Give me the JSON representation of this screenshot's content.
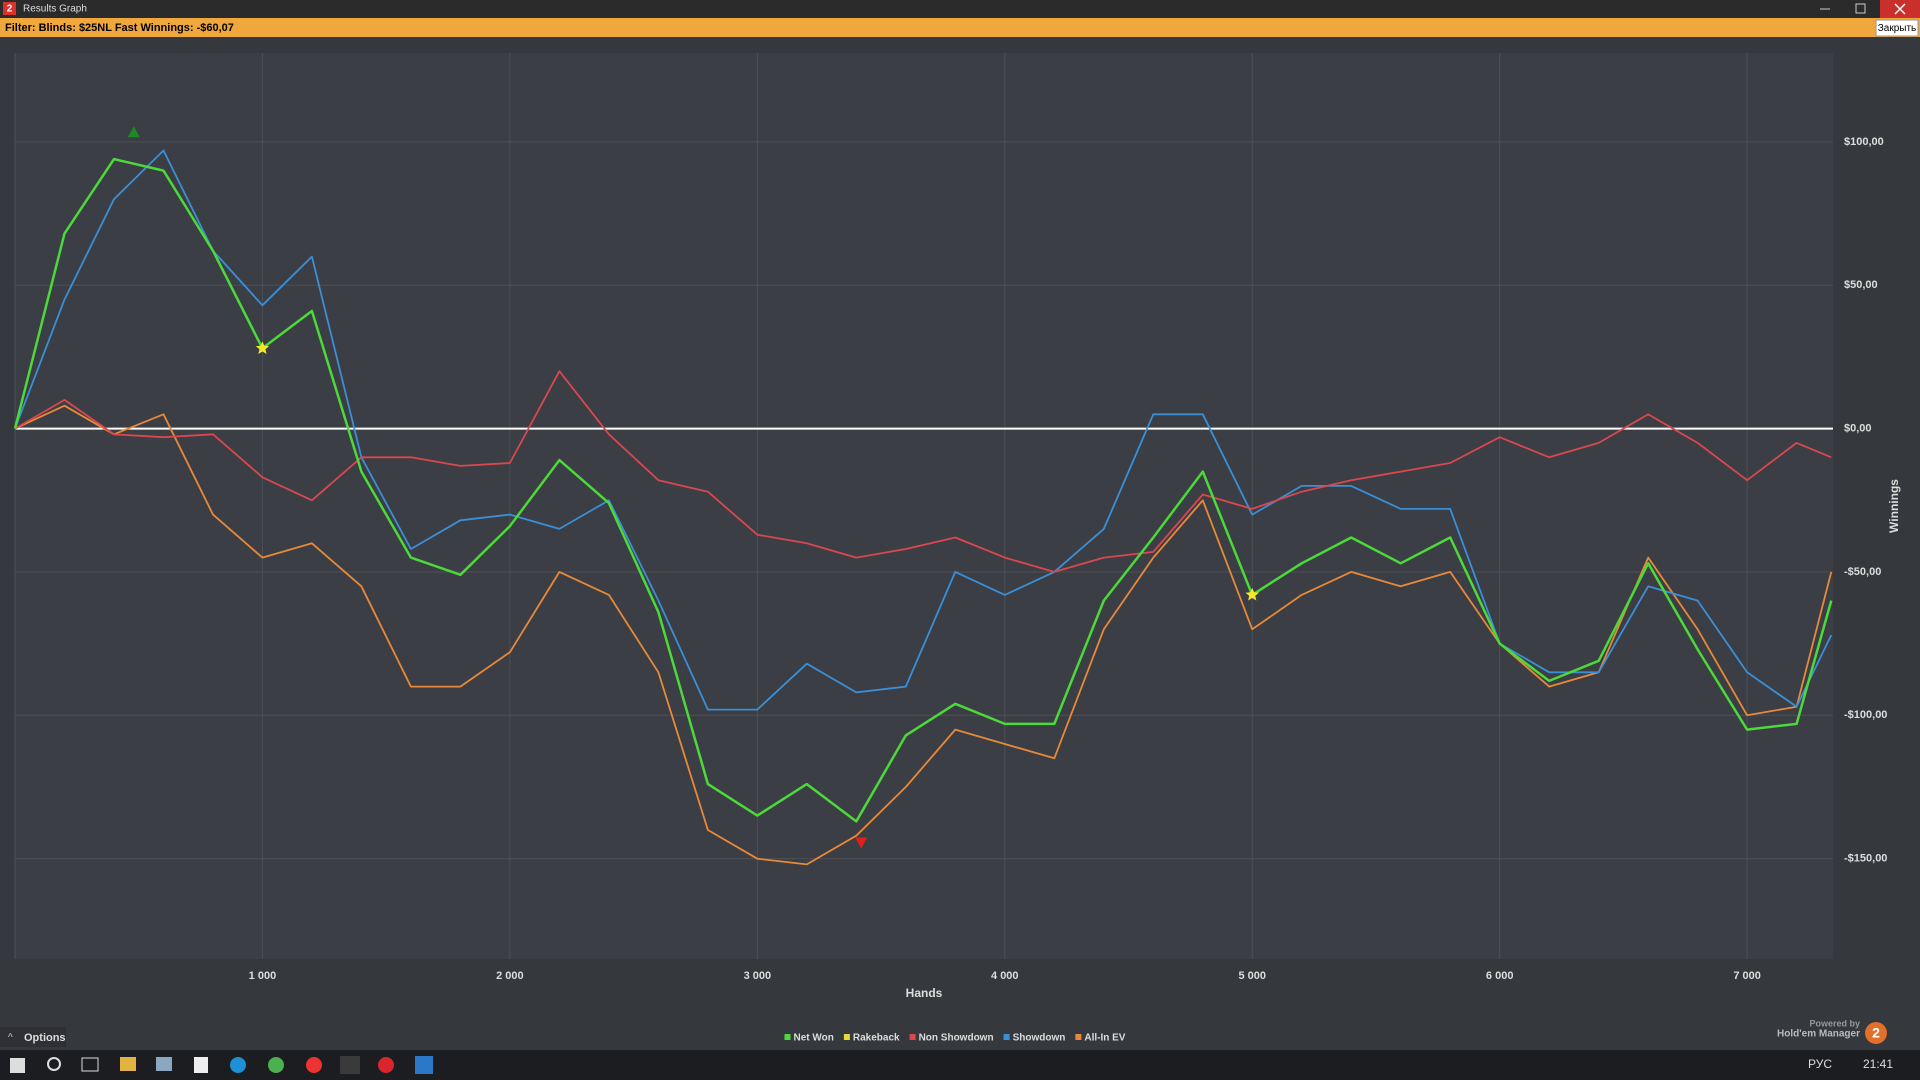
{
  "window": {
    "title": "Results Graph",
    "app_badge": "2",
    "filter": "Filter: Blinds: $25NL Fast Winnings: -$60,07",
    "close_button": "Закрыть",
    "options": "Options",
    "powered_by": "Powered by",
    "brand": "Hold'em Manager",
    "brand_badge": "2"
  },
  "taskbar": {
    "language": "РУС",
    "time": "21:41"
  },
  "chart_data": {
    "type": "line",
    "xlabel": "Hands",
    "ylabel": "Winnings",
    "x": [
      0,
      200,
      400,
      600,
      800,
      1000,
      1200,
      1400,
      1600,
      1800,
      2000,
      2200,
      2400,
      2600,
      2800,
      3000,
      3200,
      3400,
      3600,
      3800,
      4000,
      4200,
      4400,
      4600,
      4800,
      5000,
      5200,
      5400,
      5600,
      5800,
      6000,
      6200,
      6400,
      6600,
      6800,
      7000,
      7200,
      7340
    ],
    "xlim": [
      0,
      7347
    ],
    "ylim": [
      -185,
      131
    ],
    "xticks": [
      {
        "value": 1000,
        "label": "1 000"
      },
      {
        "value": 2000,
        "label": "2 000"
      },
      {
        "value": 3000,
        "label": "3 000"
      },
      {
        "value": 4000,
        "label": "4 000"
      },
      {
        "value": 5000,
        "label": "5 000"
      },
      {
        "value": 6000,
        "label": "6 000"
      },
      {
        "value": 7000,
        "label": "7 000"
      }
    ],
    "yticks": [
      {
        "value": 100,
        "label": "$100,00"
      },
      {
        "value": 50,
        "label": "$50,00"
      },
      {
        "value": 0,
        "label": "$0,00"
      },
      {
        "value": -50,
        "label": "-$50,00"
      },
      {
        "value": -100,
        "label": "-$100,00"
      },
      {
        "value": -150,
        "label": "-$150,00"
      }
    ],
    "grid": true,
    "legend": "bottom",
    "series": [
      {
        "name": "Net Won",
        "color": "#4cd93a",
        "values": [
          0,
          68,
          94,
          90,
          62,
          28,
          41,
          -15,
          -45,
          -51,
          -34,
          -11,
          -26,
          -64,
          -124,
          -135,
          -124,
          -137,
          -107,
          -96,
          -103,
          -103,
          -60,
          -38,
          -15,
          -58,
          -47,
          -38,
          -47,
          -38,
          -75,
          -88,
          -81,
          -47,
          -77,
          -105,
          -103,
          -60
        ]
      },
      {
        "name": "Rakeback",
        "color": "#e8d83a",
        "values": [
          null,
          null,
          null,
          null,
          null,
          null,
          null,
          null,
          null,
          null,
          null,
          null,
          null,
          null,
          null,
          null,
          null,
          null,
          null,
          null,
          null,
          null,
          null,
          null,
          null,
          null,
          null,
          null,
          null,
          null,
          null,
          null,
          null,
          null,
          null,
          null,
          null,
          null
        ]
      },
      {
        "name": "Non Showdown",
        "color": "#d9484f",
        "values": [
          0,
          10,
          -2,
          -3,
          -2,
          -17,
          -25,
          -10,
          -10,
          -13,
          -12,
          20,
          -2,
          -18,
          -22,
          -37,
          -40,
          -45,
          -42,
          -38,
          -45,
          -50,
          -45,
          -43,
          -23,
          -28,
          -22,
          -18,
          -15,
          -12,
          -3,
          -10,
          -5,
          5,
          -5,
          -18,
          -5,
          -10
        ]
      },
      {
        "name": "Showdown",
        "color": "#3b8fd6",
        "values": [
          0,
          45,
          80,
          97,
          62,
          43,
          60,
          -10,
          -42,
          -32,
          -30,
          -35,
          -25,
          -60,
          -98,
          -98,
          -82,
          -92,
          -90,
          -50,
          -58,
          -50,
          -35,
          5,
          5,
          -30,
          -20,
          -20,
          -28,
          -28,
          -75,
          -85,
          -85,
          -55,
          -60,
          -85,
          -97,
          -72
        ]
      },
      {
        "name": "All-In EV",
        "color": "#e8893a",
        "values": [
          0,
          8,
          -2,
          5,
          -30,
          -45,
          -40,
          -55,
          -90,
          -90,
          -78,
          -50,
          -58,
          -85,
          -140,
          -150,
          -152,
          -142,
          -125,
          -105,
          -110,
          -115,
          -70,
          -45,
          -25,
          -70,
          -58,
          -50,
          -55,
          -50,
          -75,
          -90,
          -85,
          -45,
          -70,
          -100,
          -97,
          -50
        ]
      }
    ],
    "markers": [
      {
        "x": 480,
        "y": 103,
        "shape": "triangle-up",
        "color": "#1d8a22"
      },
      {
        "x": 1000,
        "y": 28,
        "shape": "star",
        "color": "#f5e72a"
      },
      {
        "x": 3420,
        "y": -144,
        "shape": "triangle-down",
        "color": "#e0201e"
      },
      {
        "x": 5000,
        "y": -58,
        "shape": "star",
        "color": "#f5e72a"
      }
    ]
  }
}
